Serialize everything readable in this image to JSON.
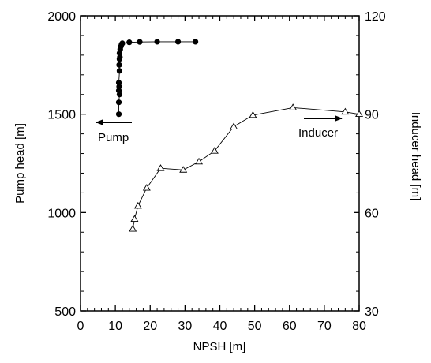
{
  "chart_data": {
    "type": "scatter",
    "xlabel": "NPSH [m]",
    "ylabel_left": "Pump head [m]",
    "ylabel_right": "Inducer head [m]",
    "xlim": [
      0,
      80
    ],
    "ylim_left": [
      500,
      2000
    ],
    "ylim_right": [
      30,
      120
    ],
    "xticks": [
      "0",
      "10",
      "20",
      "30",
      "40",
      "50",
      "60",
      "70",
      "80"
    ],
    "yticks_left": [
      "500",
      "1000",
      "1500",
      "2000"
    ],
    "yticks_right": [
      "30",
      "60",
      "90",
      "120"
    ],
    "grid": false,
    "series": [
      {
        "name": "Pump",
        "axis": "left",
        "marker": "filled-circle",
        "color": "#000000",
        "x": [
          11,
          11,
          11.2,
          11,
          11.1,
          11,
          11.2,
          11.1,
          11.2,
          11.3,
          11.2,
          11.4,
          11.6,
          11.8,
          12,
          14,
          17,
          22,
          28,
          33
        ],
        "y": [
          1500,
          1560,
          1600,
          1620,
          1640,
          1660,
          1720,
          1750,
          1780,
          1790,
          1810,
          1830,
          1845,
          1855,
          1860,
          1865,
          1867,
          1868,
          1868,
          1868
        ]
      },
      {
        "name": "Inducer",
        "axis": "right",
        "marker": "open-triangle",
        "color": "#000000",
        "x": [
          15,
          15.5,
          16.5,
          19,
          23,
          29.5,
          34,
          38.5,
          44,
          49.5,
          61,
          76,
          80
        ],
        "y": [
          55,
          58,
          62,
          67.5,
          73.5,
          73,
          75.5,
          78.8,
          86.2,
          89.7,
          92,
          90.7,
          90
        ]
      }
    ],
    "annotations": [
      {
        "text": "Pump",
        "arrow": "left"
      },
      {
        "text": "Inducer",
        "arrow": "right"
      }
    ]
  }
}
